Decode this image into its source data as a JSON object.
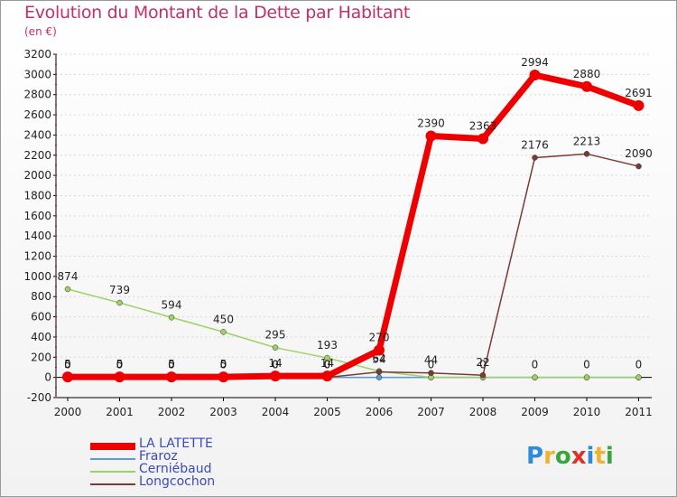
{
  "title": "Evolution du Montant de la Dette par Habitant",
  "unit": "(en €)",
  "logo": "Proxiti",
  "chart_data": {
    "type": "line",
    "title": "Evolution du Montant de la Dette par Habitant",
    "ylabel": "(en €)",
    "x": [
      "2000",
      "2001",
      "2002",
      "2003",
      "2004",
      "2005",
      "2006",
      "2007",
      "2008",
      "2009",
      "2010",
      "2011"
    ],
    "ylim": [
      -200,
      3200
    ],
    "yticks": [
      -200,
      0,
      200,
      400,
      600,
      800,
      1000,
      1200,
      1400,
      1600,
      1800,
      2000,
      2200,
      2400,
      2600,
      2800,
      3000,
      3200
    ],
    "series": [
      {
        "name": "LA LATETTE",
        "color": "#ee0000",
        "width": 7,
        "values": [
          5,
          5,
          5,
          5,
          14,
          14,
          270,
          2390,
          2363,
          2994,
          2880,
          2691
        ],
        "labels": [
          "5",
          "5",
          "5",
          "5",
          "14",
          "14",
          "270",
          "2390",
          "2363",
          "2994",
          "2880",
          "2691"
        ]
      },
      {
        "name": "Fraroz",
        "color": "#5b9bd5",
        "width": 1.5,
        "values": [
          0,
          0,
          0,
          0,
          0,
          0,
          0,
          0,
          0,
          0,
          0,
          0
        ],
        "labels": [
          "0",
          "0",
          "0",
          "0",
          "0",
          "0",
          "",
          "",
          "",
          "",
          "",
          ""
        ]
      },
      {
        "name": "Cerniébaud",
        "color": "#9cd264",
        "width": 1.5,
        "values": [
          874,
          739,
          594,
          450,
          295,
          193,
          62,
          0,
          0,
          0,
          0,
          0
        ],
        "labels": [
          "874",
          "739",
          "594",
          "450",
          "295",
          "193",
          "62",
          "0",
          "0",
          "0",
          "0",
          "0"
        ]
      },
      {
        "name": "Longcochon",
        "color": "#7a3b36",
        "width": 1.5,
        "values": [
          0,
          0,
          0,
          0,
          0,
          0,
          54,
          44,
          22,
          2176,
          2213,
          2090
        ],
        "labels": [
          "0",
          "0",
          "0",
          "0",
          "0",
          "0",
          "54",
          "44",
          "22",
          "2176",
          "2213",
          "2090"
        ]
      }
    ],
    "legend": "bottom-left"
  }
}
